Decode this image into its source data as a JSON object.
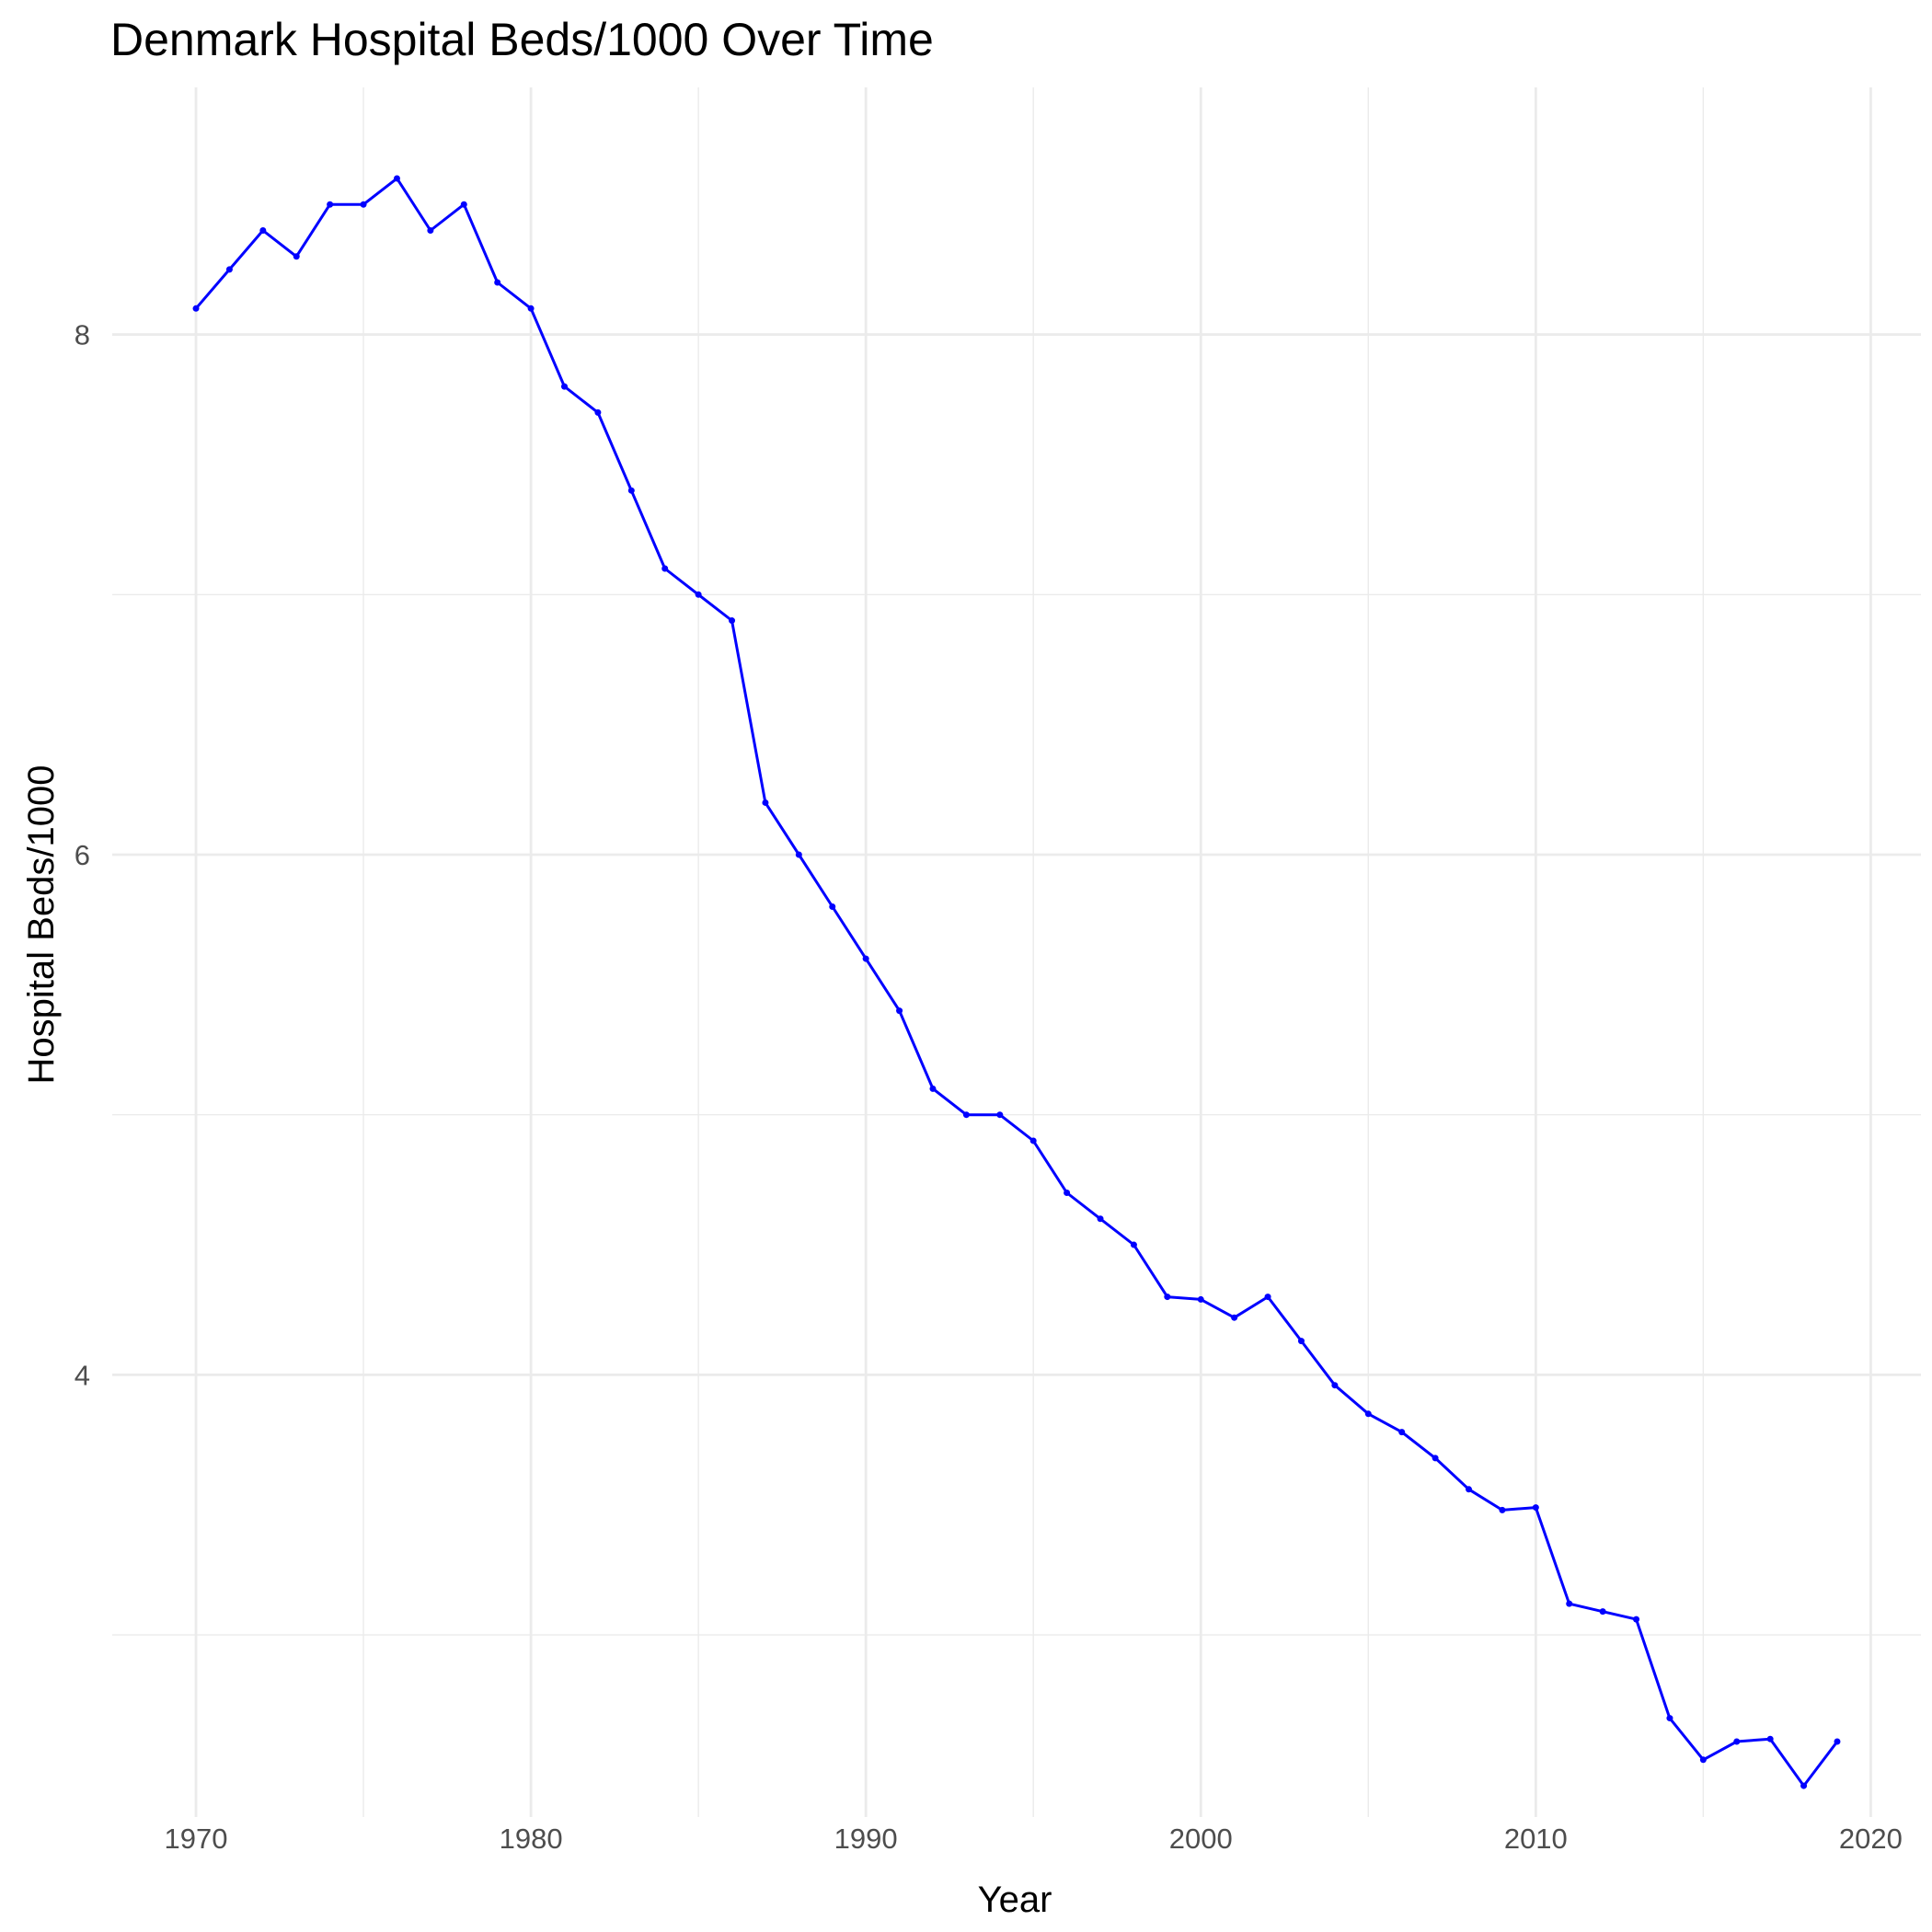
{
  "chart_data": {
    "type": "line",
    "title": "Denmark Hospital Beds/1000 Over Time",
    "xlabel": "Year",
    "ylabel": "Hospital Beds/1000",
    "xlim": [
      1967.5,
      2021.5
    ],
    "ylim": [
      2.3,
      8.95
    ],
    "x_ticks": [
      1970,
      1980,
      1990,
      2000,
      2010,
      2020
    ],
    "x_tick_labels": [
      "1970",
      "1980",
      "1990",
      "2000",
      "2010",
      "2020"
    ],
    "y_ticks": [
      4,
      6,
      8
    ],
    "y_tick_labels": [
      "4",
      "6",
      "8"
    ],
    "y_minor_ticks": [
      3,
      5,
      7
    ],
    "x_minor_ticks": [
      1975,
      1985,
      1995,
      2005,
      2015
    ],
    "grid": true,
    "color": "#0000ff",
    "series": [
      {
        "x": [
          1970,
          1971,
          1972,
          1973,
          1974,
          1975,
          1976,
          1977,
          1978,
          1979,
          1980,
          1981,
          1982,
          1983,
          1984,
          1985,
          1986,
          1987,
          1988,
          1989,
          1990,
          1991,
          1992,
          1993,
          1994,
          1995,
          1996,
          1997,
          1998,
          1999,
          2000,
          2001,
          2002,
          2003,
          2004,
          2005,
          2006,
          2007,
          2008,
          2009,
          2010,
          2011,
          2012,
          2013,
          2014,
          2015,
          2016,
          2017,
          2018,
          2019
        ],
        "y": [
          8.1,
          8.25,
          8.4,
          8.3,
          8.5,
          8.5,
          8.6,
          8.4,
          8.5,
          8.2,
          8.1,
          7.8,
          7.7,
          7.4,
          7.1,
          7.0,
          6.9,
          6.2,
          6.0,
          5.8,
          5.6,
          5.4,
          5.1,
          5.0,
          5.0,
          4.9,
          4.7,
          4.6,
          4.5,
          4.3,
          4.29,
          4.22,
          4.3,
          4.13,
          3.96,
          3.85,
          3.78,
          3.68,
          3.56,
          3.48,
          3.49,
          3.12,
          3.09,
          3.06,
          2.68,
          2.52,
          2.59,
          2.6,
          2.42,
          2.59
        ]
      }
    ]
  }
}
